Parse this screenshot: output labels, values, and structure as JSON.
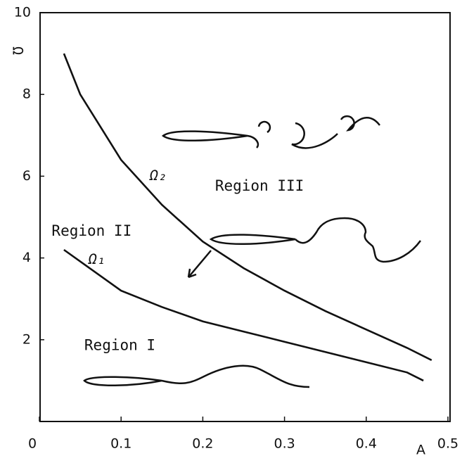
{
  "chart_data": {
    "type": "line",
    "x_label": "A",
    "y_label": "Ω",
    "xlim": [
      0,
      0.5
    ],
    "ylim": [
      0,
      10
    ],
    "xticks": [
      0,
      0.1,
      0.2,
      0.3,
      0.4,
      0.5
    ],
    "yticks": [
      2,
      4,
      6,
      8,
      10
    ],
    "series": [
      {
        "name": "Ω₂",
        "color": "#111111",
        "x": [
          0.03,
          0.05,
          0.1,
          0.15,
          0.2,
          0.25,
          0.3,
          0.35,
          0.4,
          0.45,
          0.48
        ],
        "values": [
          9.0,
          8.0,
          6.4,
          5.3,
          4.4,
          3.75,
          3.2,
          2.7,
          2.25,
          1.8,
          1.5
        ]
      },
      {
        "name": "Ω₁",
        "color": "#111111",
        "x": [
          0.03,
          0.1,
          0.15,
          0.2,
          0.25,
          0.3,
          0.35,
          0.4,
          0.45,
          0.47
        ],
        "values": [
          4.2,
          3.2,
          2.8,
          2.45,
          2.2,
          1.95,
          1.7,
          1.45,
          1.2,
          1.0
        ]
      }
    ],
    "annotations": [
      "Region I",
      "Region II",
      "Region III"
    ]
  }
}
